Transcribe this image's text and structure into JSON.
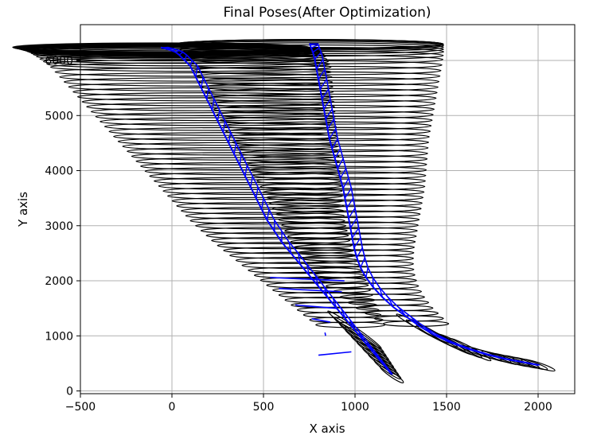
{
  "chart_data": {
    "type": "line",
    "title": "Final Poses(After Optimization)",
    "xlabel": "X axis",
    "ylabel": "Y axis",
    "xlim": [
      -500,
      2200
    ],
    "ylim": [
      -50,
      6650
    ],
    "xticks": [
      -500,
      0,
      500,
      1000,
      1500,
      2000
    ],
    "yticks": [
      0,
      1000,
      2000,
      3000,
      4000,
      5000,
      6000
    ],
    "xtick_labels": [
      "−500",
      "0",
      "500",
      "1000",
      "1500",
      "2000"
    ],
    "ytick_labels": [
      "0",
      "1000",
      "2000",
      "3000",
      "4000",
      "5000",
      "6000"
    ],
    "grid": true,
    "colors": {
      "trajectory": "#0000ff",
      "covariance": "#000000",
      "grid": "#b0b0b0"
    },
    "series": [
      {
        "x": [
          2000,
          1920,
          1820,
          1720,
          1620,
          1520,
          1430,
          1350,
          1280,
          1210,
          1150,
          1100,
          1060,
          1030,
          1010,
          995,
          985,
          975,
          965,
          955,
          945,
          935,
          920,
          905,
          890,
          875,
          860,
          850,
          840,
          830,
          820,
          810,
          800,
          790,
          780,
          770,
          760,
          755,
          752,
          750
        ],
        "y": [
          470,
          520,
          580,
          660,
          760,
          880,
          1020,
          1180,
          1350,
          1520,
          1700,
          1880,
          2060,
          2240,
          2420,
          2600,
          2780,
          2960,
          3140,
          3320,
          3500,
          3680,
          3860,
          4040,
          4220,
          4400,
          4580,
          4760,
          4940,
          5120,
          5300,
          5480,
          5660,
          5840,
          6020,
          6150,
          6230,
          6280,
          6300,
          6300
        ]
      },
      {
        "x": [
          1200,
          1150,
          1100,
          1050,
          1000,
          950,
          900,
          850,
          800,
          750,
          700,
          650,
          600,
          560,
          520,
          490,
          460,
          430,
          400,
          370,
          340,
          310,
          280,
          250,
          220,
          190,
          160,
          130,
          100,
          70,
          40,
          20,
          0,
          -20,
          -40,
          -55,
          -60
        ],
        "y": [
          300,
          500,
          700,
          900,
          1100,
          1300,
          1500,
          1700,
          1900,
          2100,
          2300,
          2500,
          2700,
          2900,
          3100,
          3300,
          3500,
          3700,
          3900,
          4100,
          4300,
          4500,
          4700,
          4900,
          5100,
          5300,
          5500,
          5700,
          5900,
          6000,
          6100,
          6150,
          6180,
          6200,
          6220,
          6230,
          6240
        ]
      }
    ]
  }
}
